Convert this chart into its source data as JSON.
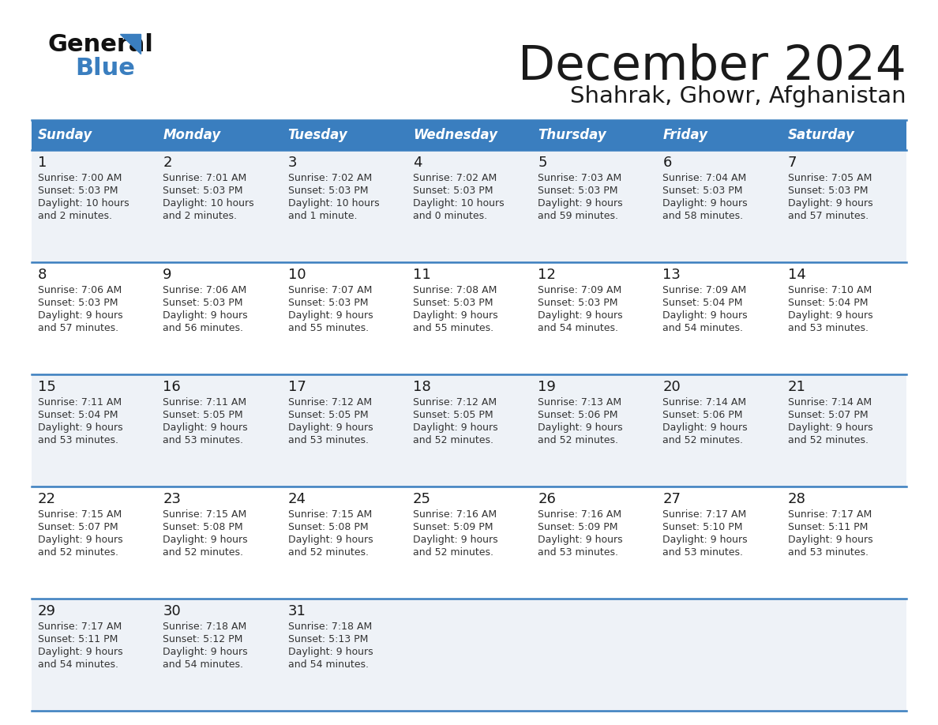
{
  "title": "December 2024",
  "subtitle": "Shahrak, Ghowr, Afghanistan",
  "header_color": "#3a7ebf",
  "header_text_color": "#ffffff",
  "row_bg_odd": "#eef2f7",
  "row_bg_even": "#ffffff",
  "border_color": "#3a7ebf",
  "days_of_week": [
    "Sunday",
    "Monday",
    "Tuesday",
    "Wednesday",
    "Thursday",
    "Friday",
    "Saturday"
  ],
  "calendar_data": [
    [
      {
        "day": "1",
        "sunrise": "7:00 AM",
        "sunset": "5:03 PM",
        "daylight1": "10 hours",
        "daylight2": "and 2 minutes."
      },
      {
        "day": "2",
        "sunrise": "7:01 AM",
        "sunset": "5:03 PM",
        "daylight1": "10 hours",
        "daylight2": "and 2 minutes."
      },
      {
        "day": "3",
        "sunrise": "7:02 AM",
        "sunset": "5:03 PM",
        "daylight1": "10 hours",
        "daylight2": "and 1 minute."
      },
      {
        "day": "4",
        "sunrise": "7:02 AM",
        "sunset": "5:03 PM",
        "daylight1": "10 hours",
        "daylight2": "and 0 minutes."
      },
      {
        "day": "5",
        "sunrise": "7:03 AM",
        "sunset": "5:03 PM",
        "daylight1": "9 hours",
        "daylight2": "and 59 minutes."
      },
      {
        "day": "6",
        "sunrise": "7:04 AM",
        "sunset": "5:03 PM",
        "daylight1": "9 hours",
        "daylight2": "and 58 minutes."
      },
      {
        "day": "7",
        "sunrise": "7:05 AM",
        "sunset": "5:03 PM",
        "daylight1": "9 hours",
        "daylight2": "and 57 minutes."
      }
    ],
    [
      {
        "day": "8",
        "sunrise": "7:06 AM",
        "sunset": "5:03 PM",
        "daylight1": "9 hours",
        "daylight2": "and 57 minutes."
      },
      {
        "day": "9",
        "sunrise": "7:06 AM",
        "sunset": "5:03 PM",
        "daylight1": "9 hours",
        "daylight2": "and 56 minutes."
      },
      {
        "day": "10",
        "sunrise": "7:07 AM",
        "sunset": "5:03 PM",
        "daylight1": "9 hours",
        "daylight2": "and 55 minutes."
      },
      {
        "day": "11",
        "sunrise": "7:08 AM",
        "sunset": "5:03 PM",
        "daylight1": "9 hours",
        "daylight2": "and 55 minutes."
      },
      {
        "day": "12",
        "sunrise": "7:09 AM",
        "sunset": "5:03 PM",
        "daylight1": "9 hours",
        "daylight2": "and 54 minutes."
      },
      {
        "day": "13",
        "sunrise": "7:09 AM",
        "sunset": "5:04 PM",
        "daylight1": "9 hours",
        "daylight2": "and 54 minutes."
      },
      {
        "day": "14",
        "sunrise": "7:10 AM",
        "sunset": "5:04 PM",
        "daylight1": "9 hours",
        "daylight2": "and 53 minutes."
      }
    ],
    [
      {
        "day": "15",
        "sunrise": "7:11 AM",
        "sunset": "5:04 PM",
        "daylight1": "9 hours",
        "daylight2": "and 53 minutes."
      },
      {
        "day": "16",
        "sunrise": "7:11 AM",
        "sunset": "5:05 PM",
        "daylight1": "9 hours",
        "daylight2": "and 53 minutes."
      },
      {
        "day": "17",
        "sunrise": "7:12 AM",
        "sunset": "5:05 PM",
        "daylight1": "9 hours",
        "daylight2": "and 53 minutes."
      },
      {
        "day": "18",
        "sunrise": "7:12 AM",
        "sunset": "5:05 PM",
        "daylight1": "9 hours",
        "daylight2": "and 52 minutes."
      },
      {
        "day": "19",
        "sunrise": "7:13 AM",
        "sunset": "5:06 PM",
        "daylight1": "9 hours",
        "daylight2": "and 52 minutes."
      },
      {
        "day": "20",
        "sunrise": "7:14 AM",
        "sunset": "5:06 PM",
        "daylight1": "9 hours",
        "daylight2": "and 52 minutes."
      },
      {
        "day": "21",
        "sunrise": "7:14 AM",
        "sunset": "5:07 PM",
        "daylight1": "9 hours",
        "daylight2": "and 52 minutes."
      }
    ],
    [
      {
        "day": "22",
        "sunrise": "7:15 AM",
        "sunset": "5:07 PM",
        "daylight1": "9 hours",
        "daylight2": "and 52 minutes."
      },
      {
        "day": "23",
        "sunrise": "7:15 AM",
        "sunset": "5:08 PM",
        "daylight1": "9 hours",
        "daylight2": "and 52 minutes."
      },
      {
        "day": "24",
        "sunrise": "7:15 AM",
        "sunset": "5:08 PM",
        "daylight1": "9 hours",
        "daylight2": "and 52 minutes."
      },
      {
        "day": "25",
        "sunrise": "7:16 AM",
        "sunset": "5:09 PM",
        "daylight1": "9 hours",
        "daylight2": "and 52 minutes."
      },
      {
        "day": "26",
        "sunrise": "7:16 AM",
        "sunset": "5:09 PM",
        "daylight1": "9 hours",
        "daylight2": "and 53 minutes."
      },
      {
        "day": "27",
        "sunrise": "7:17 AM",
        "sunset": "5:10 PM",
        "daylight1": "9 hours",
        "daylight2": "and 53 minutes."
      },
      {
        "day": "28",
        "sunrise": "7:17 AM",
        "sunset": "5:11 PM",
        "daylight1": "9 hours",
        "daylight2": "and 53 minutes."
      }
    ],
    [
      {
        "day": "29",
        "sunrise": "7:17 AM",
        "sunset": "5:11 PM",
        "daylight1": "9 hours",
        "daylight2": "and 54 minutes."
      },
      {
        "day": "30",
        "sunrise": "7:18 AM",
        "sunset": "5:12 PM",
        "daylight1": "9 hours",
        "daylight2": "and 54 minutes."
      },
      {
        "day": "31",
        "sunrise": "7:18 AM",
        "sunset": "5:13 PM",
        "daylight1": "9 hours",
        "daylight2": "and 54 minutes."
      },
      null,
      null,
      null,
      null
    ]
  ],
  "background_color": "#ffffff",
  "title_color": "#1a1a1a",
  "subtitle_color": "#1a1a1a",
  "day_number_color": "#1a1a1a",
  "cell_text_color": "#333333"
}
